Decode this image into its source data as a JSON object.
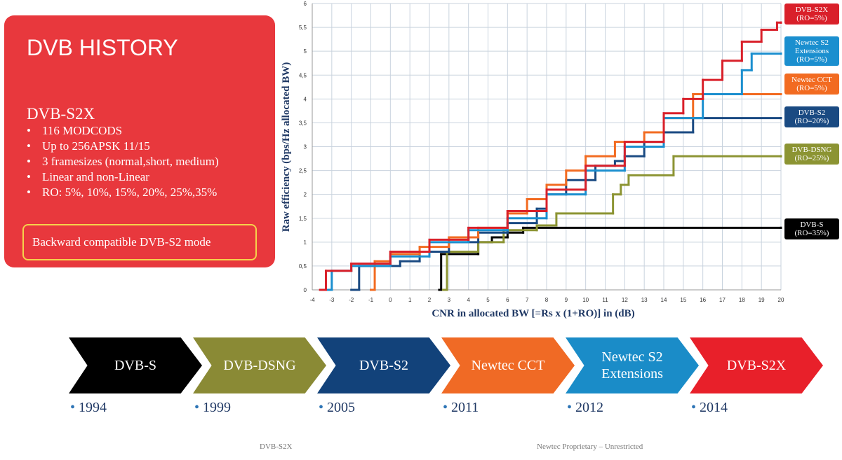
{
  "panel": {
    "title": "DVB HISTORY",
    "subtitle": "DVB-S2X",
    "bullets": [
      "116 MODCODS",
      "Up to 256APSK 11/15",
      "3 framesizes (normal,short, medium)",
      "Linear and non-Linear",
      "RO: 5%, 10%, 15%, 20%, 25%,35%"
    ],
    "note": "Backward compatible DVB-S2 mode"
  },
  "chart_data": {
    "type": "line",
    "step": true,
    "grid": true,
    "xlabel": "CNR in allocated BW [=Rs x (1+RO)] in (dB)",
    "ylabel": "Raw efficiency (bps/Hz allocated BW)",
    "xlim": [
      -4,
      20
    ],
    "xticks": [
      -4,
      -3,
      -2,
      -1,
      0,
      1,
      2,
      3,
      4,
      5,
      6,
      7,
      8,
      9,
      10,
      11,
      12,
      13,
      14,
      15,
      16,
      17,
      18,
      19,
      20
    ],
    "ylim": [
      0,
      6
    ],
    "yticks": [
      0,
      {
        "value": 0.5,
        "label": "0,5"
      },
      1,
      {
        "value": 1.5,
        "label": "1,5"
      },
      2,
      {
        "value": 2.5,
        "label": "2,5"
      },
      3,
      {
        "value": 3.5,
        "label": "3,5"
      },
      4,
      {
        "value": 4.5,
        "label": "4,5"
      },
      5,
      {
        "value": 5.5,
        "label": "5,5"
      },
      6
    ],
    "series": [
      {
        "name": "DVB-S (RO=35%)",
        "color": "#000000",
        "x": [
          2.5,
          2.6,
          4.5,
          5.2,
          6,
          6.8,
          20
        ],
        "values": [
          0,
          0.75,
          1.0,
          1.1,
          1.2,
          1.3,
          1.3
        ]
      },
      {
        "name": "DVB-DSNG (RO=25%)",
        "color": "#8c9433",
        "x": [
          2.7,
          2.9,
          4.5,
          5.8,
          7.5,
          8.5,
          11.4,
          11.8,
          12.2,
          14.5,
          20
        ],
        "values": [
          0,
          0.8,
          1.0,
          1.25,
          1.35,
          1.6,
          2.0,
          2.2,
          2.4,
          2.8,
          2.8
        ]
      },
      {
        "name": "DVB-S2 (RO=20%)",
        "color": "#1a4a82",
        "x": [
          -2,
          -1.6,
          0.5,
          1.5,
          3,
          4.5,
          6,
          7.5,
          8,
          9,
          10.5,
          11.5,
          12,
          13,
          14,
          15.5,
          20
        ],
        "values": [
          0,
          0.5,
          0.6,
          0.8,
          1.0,
          1.2,
          1.4,
          1.7,
          2.0,
          2.3,
          2.6,
          2.7,
          2.8,
          3.1,
          3.3,
          3.6,
          3.6
        ]
      },
      {
        "name": "Newtec CCT (RO=5%)",
        "color": "#f26b21",
        "x": [
          -1,
          -0.8,
          0,
          1.5,
          3,
          4.5,
          6,
          7,
          8,
          9,
          10,
          11.5,
          13,
          14,
          15.5,
          20
        ],
        "values": [
          0,
          0.6,
          0.75,
          0.9,
          1.1,
          1.3,
          1.6,
          1.9,
          2.2,
          2.5,
          2.8,
          3.1,
          3.3,
          3.6,
          4.1,
          4.1
        ]
      },
      {
        "name": "Newtec S2 Extensions (RO=5%)",
        "color": "#1b8fcf",
        "x": [
          -3.2,
          -3,
          -2,
          0,
          2,
          4,
          6,
          8,
          10,
          12,
          14,
          16,
          18,
          18.5,
          20
        ],
        "values": [
          0,
          0.4,
          0.5,
          0.7,
          1.0,
          1.25,
          1.5,
          2.0,
          2.5,
          3.0,
          3.6,
          4.1,
          4.6,
          4.95,
          4.95
        ]
      },
      {
        "name": "DVB-S2X (RO=5%)",
        "color": "#d9202a",
        "x": [
          -3.6,
          -3.3,
          -2,
          0,
          2,
          4,
          6,
          8,
          10,
          12,
          14,
          15,
          16,
          17,
          18,
          19,
          19.8,
          20
        ],
        "values": [
          0,
          0.4,
          0.55,
          0.8,
          1.05,
          1.3,
          1.65,
          2.1,
          2.6,
          3.1,
          3.7,
          4.0,
          4.4,
          4.8,
          5.2,
          5.45,
          5.6,
          5.6
        ]
      }
    ]
  },
  "timeline": [
    {
      "label": "DVB-S",
      "year": "1994",
      "color": "#000000"
    },
    {
      "label": "DVB-DSNG",
      "year": "1999",
      "color": "#8a8a35"
    },
    {
      "label": "DVB-S2",
      "year": "2005",
      "color": "#12427a"
    },
    {
      "label": "Newtec CCT",
      "year": "2011",
      "color": "#f06a25"
    },
    {
      "label": "Newtec S2 Extensions",
      "year": "2012",
      "color": "#1a8cc8"
    },
    {
      "label": "DVB-S2X",
      "year": "2014",
      "color": "#e8202a"
    }
  ],
  "footer": {
    "left": "DVB-S2X",
    "right": "Newtec Proprietary – Unrestricted"
  }
}
